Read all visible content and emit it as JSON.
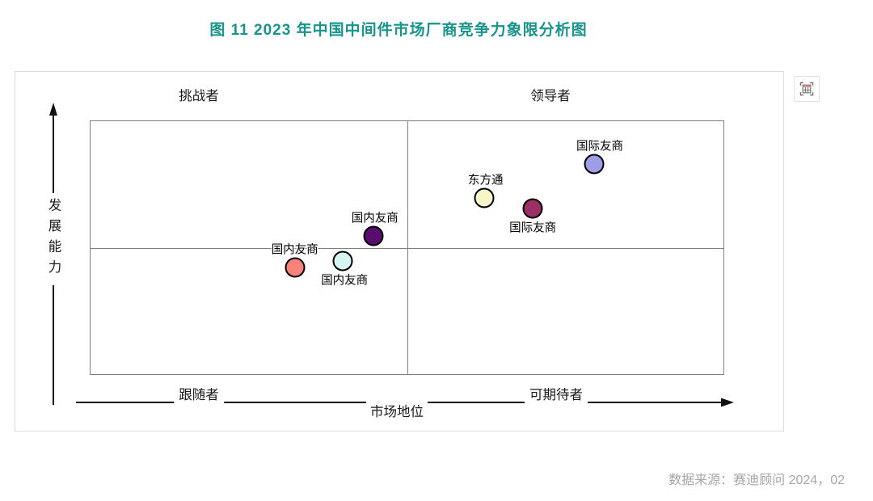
{
  "title": "图 11  2023 年中国中间件市场厂商竞争力象限分析图",
  "source": "数据来源：赛迪顾问  2024，02",
  "toolbox": {
    "data_view_icon": "data-view-table-icon"
  },
  "colors": {
    "title_teal": "#17948C",
    "axis_line": "#111111",
    "plot_border": "#7f7f7f",
    "source_gray": "#a6a6a6"
  },
  "chart_data": {
    "type": "scatter",
    "title": "图 11  2023 年中国中间件市场厂商竞争力象限分析图",
    "xlabel": "市场地位",
    "ylabel": "发展能力",
    "grid": "quadrant",
    "legend_position": "none",
    "xlim": [
      0,
      1
    ],
    "ylim": [
      0,
      1
    ],
    "quadrant_labels": {
      "top_left": "挑战者",
      "top_right": "领导者",
      "bottom_left": "跟随者",
      "bottom_right": "可期待者"
    },
    "points": [
      {
        "name": "国际友商",
        "x": 0.797,
        "y": 0.827,
        "color": "#9D9DE8",
        "label_position": "top",
        "label_dx": 7
      },
      {
        "name": "东方通",
        "x": 0.623,
        "y": 0.693,
        "color": "#F8F6C9",
        "label_position": "top",
        "label_dx": 2
      },
      {
        "name": "国际友商",
        "x": 0.7,
        "y": 0.652,
        "color": "#9B3067",
        "label_position": "bottom",
        "label_dx": 0
      },
      {
        "name": "国内友商",
        "x": 0.448,
        "y": 0.543,
        "color": "#5A0D6E",
        "label_position": "top",
        "label_dx": 2
      },
      {
        "name": "国内友商",
        "x": 0.324,
        "y": 0.419,
        "color": "#F9837B",
        "label_position": "top",
        "label_dx": 0
      },
      {
        "name": "国内友商",
        "x": 0.4,
        "y": 0.444,
        "color": "#D6F5F2",
        "label_position": "bottom",
        "label_dx": 2
      }
    ]
  }
}
